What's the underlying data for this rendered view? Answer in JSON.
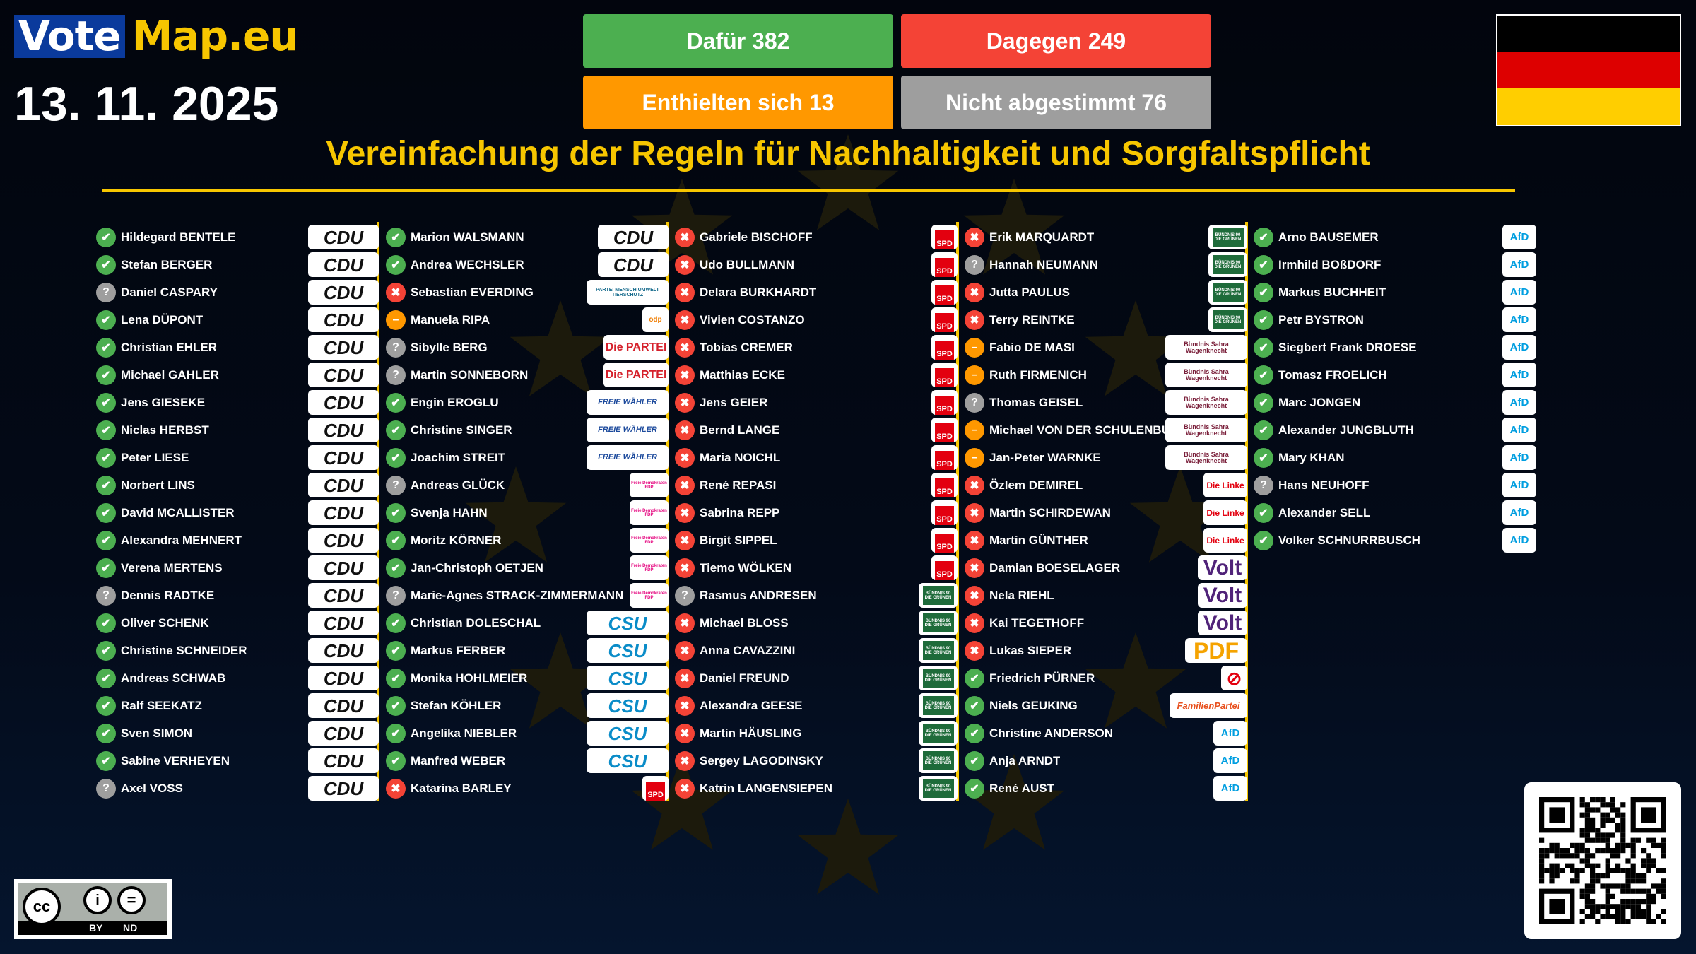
{
  "brand": {
    "vote": "Vote",
    "map": "Map.eu"
  },
  "date": "13. 11. 2025",
  "tally": {
    "for": "Dafür 382",
    "against": "Dagegen 249",
    "abstain": "Enthielten sich 13",
    "absent": "Nicht abgestimmt 76"
  },
  "title": "Vereinfachung der Regeln für Nachhaltigkeit und Sorgfaltspflicht",
  "country_flag": {
    "name": "germany-flag",
    "colors": [
      "#000000",
      "#DD0000",
      "#FFCE00"
    ]
  },
  "colors": {
    "for": "#4CAF50",
    "against": "#F44336",
    "abstain": "#FF9800",
    "absent": "#9E9E9E",
    "accent": "#F7C600"
  },
  "vote_icons": {
    "for": "✔",
    "against": "✖",
    "abstain": "–",
    "absent": "?"
  },
  "parties": {
    "CDU": {
      "label": "CDU",
      "color": "#111111"
    },
    "CSU": {
      "label": "CSU",
      "color": "#0a8cc8"
    },
    "SPD": {
      "label": "SPD",
      "color": "#E3000F"
    },
    "GRUENE": {
      "label": "BÜNDNIS 90 DIE GRÜNEN",
      "color": "#1E6B3A"
    },
    "AFD": {
      "label": "AfD",
      "color": "#009EE0"
    },
    "FDP": {
      "label": "Freie Demokraten FDP",
      "color": "#E5007D"
    },
    "FW": {
      "label": "FREIE WÄHLER",
      "color": "#1C4A9C"
    },
    "PARTEI": {
      "label": "Die PARTEI",
      "color": "#D5202B"
    },
    "TIERSCHUTZ": {
      "label": "PARTEI MENSCH UMWELT TIERSCHUTZ",
      "color": "#156A8C"
    },
    "OEDP": {
      "label": "ödp",
      "color": "#F07D00"
    },
    "BSW": {
      "label": "Bündnis Sahra Wagenknecht",
      "color": "#7A1F3A"
    },
    "LINKE": {
      "label": "Die Linke",
      "color": "#E3000F"
    },
    "VOLT": {
      "label": "Volt",
      "color": "#502379"
    },
    "PDF": {
      "label": "PDF",
      "color": "#F5A300"
    },
    "NI": {
      "label": "⊘",
      "color": "#E3000F"
    },
    "FAMILIE": {
      "label": "FamilienPartei",
      "color": "#E8501D"
    }
  },
  "columns": [
    [
      {
        "name": "Hildegard BENTELE",
        "vote": "for",
        "party": "CDU"
      },
      {
        "name": "Stefan BERGER",
        "vote": "for",
        "party": "CDU"
      },
      {
        "name": "Daniel CASPARY",
        "vote": "absent",
        "party": "CDU"
      },
      {
        "name": "Lena DÜPONT",
        "vote": "for",
        "party": "CDU"
      },
      {
        "name": "Christian EHLER",
        "vote": "for",
        "party": "CDU"
      },
      {
        "name": "Michael GAHLER",
        "vote": "for",
        "party": "CDU"
      },
      {
        "name": "Jens GIESEKE",
        "vote": "for",
        "party": "CDU"
      },
      {
        "name": "Niclas HERBST",
        "vote": "for",
        "party": "CDU"
      },
      {
        "name": "Peter LIESE",
        "vote": "for",
        "party": "CDU"
      },
      {
        "name": "Norbert LINS",
        "vote": "for",
        "party": "CDU"
      },
      {
        "name": "David MCALLISTER",
        "vote": "for",
        "party": "CDU"
      },
      {
        "name": "Alexandra MEHNERT",
        "vote": "for",
        "party": "CDU"
      },
      {
        "name": "Verena MERTENS",
        "vote": "for",
        "party": "CDU"
      },
      {
        "name": "Dennis RADTKE",
        "vote": "absent",
        "party": "CDU"
      },
      {
        "name": "Oliver SCHENK",
        "vote": "for",
        "party": "CDU"
      },
      {
        "name": "Christine SCHNEIDER",
        "vote": "for",
        "party": "CDU"
      },
      {
        "name": "Andreas SCHWAB",
        "vote": "for",
        "party": "CDU"
      },
      {
        "name": "Ralf SEEKATZ",
        "vote": "for",
        "party": "CDU"
      },
      {
        "name": "Sven SIMON",
        "vote": "for",
        "party": "CDU"
      },
      {
        "name": "Sabine VERHEYEN",
        "vote": "for",
        "party": "CDU"
      },
      {
        "name": "Axel VOSS",
        "vote": "absent",
        "party": "CDU"
      }
    ],
    [
      {
        "name": "Marion WALSMANN",
        "vote": "for",
        "party": "CDU"
      },
      {
        "name": "Andrea WECHSLER",
        "vote": "for",
        "party": "CDU"
      },
      {
        "name": "Sebastian EVERDING",
        "vote": "against",
        "party": "TIERSCHUTZ"
      },
      {
        "name": "Manuela RIPA",
        "vote": "abstain",
        "party": "OEDP"
      },
      {
        "name": "Sibylle BERG",
        "vote": "absent",
        "party": "PARTEI"
      },
      {
        "name": "Martin SONNEBORN",
        "vote": "absent",
        "party": "PARTEI"
      },
      {
        "name": "Engin EROGLU",
        "vote": "for",
        "party": "FW"
      },
      {
        "name": "Christine SINGER",
        "vote": "for",
        "party": "FW"
      },
      {
        "name": "Joachim STREIT",
        "vote": "for",
        "party": "FW"
      },
      {
        "name": "Andreas GLÜCK",
        "vote": "absent",
        "party": "FDP"
      },
      {
        "name": "Svenja HAHN",
        "vote": "for",
        "party": "FDP"
      },
      {
        "name": "Moritz KÖRNER",
        "vote": "for",
        "party": "FDP"
      },
      {
        "name": "Jan-Christoph OETJEN",
        "vote": "for",
        "party": "FDP"
      },
      {
        "name": "Marie-Agnes STRACK-ZIMMERMANN",
        "vote": "absent",
        "party": "FDP"
      },
      {
        "name": "Christian DOLESCHAL",
        "vote": "for",
        "party": "CSU"
      },
      {
        "name": "Markus FERBER",
        "vote": "for",
        "party": "CSU"
      },
      {
        "name": "Monika HOHLMEIER",
        "vote": "for",
        "party": "CSU"
      },
      {
        "name": "Stefan KÖHLER",
        "vote": "for",
        "party": "CSU"
      },
      {
        "name": "Angelika NIEBLER",
        "vote": "for",
        "party": "CSU"
      },
      {
        "name": "Manfred WEBER",
        "vote": "for",
        "party": "CSU"
      },
      {
        "name": "Katarina BARLEY",
        "vote": "against",
        "party": "SPD"
      }
    ],
    [
      {
        "name": "Gabriele BISCHOFF",
        "vote": "against",
        "party": "SPD"
      },
      {
        "name": "Udo BULLMANN",
        "vote": "against",
        "party": "SPD"
      },
      {
        "name": "Delara BURKHARDT",
        "vote": "against",
        "party": "SPD"
      },
      {
        "name": "Vivien COSTANZO",
        "vote": "against",
        "party": "SPD"
      },
      {
        "name": "Tobias CREMER",
        "vote": "against",
        "party": "SPD"
      },
      {
        "name": "Matthias ECKE",
        "vote": "against",
        "party": "SPD"
      },
      {
        "name": "Jens GEIER",
        "vote": "against",
        "party": "SPD"
      },
      {
        "name": "Bernd LANGE",
        "vote": "against",
        "party": "SPD"
      },
      {
        "name": "Maria NOICHL",
        "vote": "against",
        "party": "SPD"
      },
      {
        "name": "René REPASI",
        "vote": "against",
        "party": "SPD"
      },
      {
        "name": "Sabrina REPP",
        "vote": "against",
        "party": "SPD"
      },
      {
        "name": "Birgit SIPPEL",
        "vote": "against",
        "party": "SPD"
      },
      {
        "name": "Tiemo WÖLKEN",
        "vote": "against",
        "party": "SPD"
      },
      {
        "name": "Rasmus ANDRESEN",
        "vote": "absent",
        "party": "GRUENE"
      },
      {
        "name": "Michael BLOSS",
        "vote": "against",
        "party": "GRUENE"
      },
      {
        "name": "Anna CAVAZZINI",
        "vote": "against",
        "party": "GRUENE"
      },
      {
        "name": "Daniel FREUND",
        "vote": "against",
        "party": "GRUENE"
      },
      {
        "name": "Alexandra GEESE",
        "vote": "against",
        "party": "GRUENE"
      },
      {
        "name": "Martin HÄUSLING",
        "vote": "against",
        "party": "GRUENE"
      },
      {
        "name": "Sergey LAGODINSKY",
        "vote": "against",
        "party": "GRUENE"
      },
      {
        "name": "Katrin LANGENSIEPEN",
        "vote": "against",
        "party": "GRUENE"
      }
    ],
    [
      {
        "name": "Erik MARQUARDT",
        "vote": "against",
        "party": "GRUENE"
      },
      {
        "name": "Hannah NEUMANN",
        "vote": "absent",
        "party": "GRUENE"
      },
      {
        "name": "Jutta PAULUS",
        "vote": "against",
        "party": "GRUENE"
      },
      {
        "name": "Terry REINTKE",
        "vote": "against",
        "party": "GRUENE"
      },
      {
        "name": "Fabio DE MASI",
        "vote": "abstain",
        "party": "BSW"
      },
      {
        "name": "Ruth FIRMENICH",
        "vote": "abstain",
        "party": "BSW"
      },
      {
        "name": "Thomas GEISEL",
        "vote": "absent",
        "party": "BSW"
      },
      {
        "name": "Michael VON DER SCHULENBU",
        "vote": "abstain",
        "party": "BSW"
      },
      {
        "name": "Jan-Peter WARNKE",
        "vote": "abstain",
        "party": "BSW"
      },
      {
        "name": "Özlem DEMIREL",
        "vote": "against",
        "party": "LINKE"
      },
      {
        "name": "Martin SCHIRDEWAN",
        "vote": "against",
        "party": "LINKE"
      },
      {
        "name": "Martin GÜNTHER",
        "vote": "against",
        "party": "LINKE"
      },
      {
        "name": "Damian BOESELAGER",
        "vote": "against",
        "party": "VOLT"
      },
      {
        "name": "Nela RIEHL",
        "vote": "against",
        "party": "VOLT"
      },
      {
        "name": "Kai TEGETHOFF",
        "vote": "against",
        "party": "VOLT"
      },
      {
        "name": "Lukas SIEPER",
        "vote": "against",
        "party": "PDF"
      },
      {
        "name": "Friedrich PÜRNER",
        "vote": "for",
        "party": "NI"
      },
      {
        "name": "Niels GEUKING",
        "vote": "for",
        "party": "FAMILIE"
      },
      {
        "name": "Christine ANDERSON",
        "vote": "for",
        "party": "AFD"
      },
      {
        "name": "Anja ARNDT",
        "vote": "for",
        "party": "AFD"
      },
      {
        "name": "René AUST",
        "vote": "for",
        "party": "AFD"
      }
    ],
    [
      {
        "name": "Arno BAUSEMER",
        "vote": "for",
        "party": "AFD"
      },
      {
        "name": "Irmhild BOßDORF",
        "vote": "for",
        "party": "AFD"
      },
      {
        "name": "Markus BUCHHEIT",
        "vote": "for",
        "party": "AFD"
      },
      {
        "name": "Petr BYSTRON",
        "vote": "for",
        "party": "AFD"
      },
      {
        "name": "Siegbert Frank DROESE",
        "vote": "for",
        "party": "AFD"
      },
      {
        "name": "Tomasz FROELICH",
        "vote": "for",
        "party": "AFD"
      },
      {
        "name": "Marc JONGEN",
        "vote": "for",
        "party": "AFD"
      },
      {
        "name": "Alexander JUNGBLUTH",
        "vote": "for",
        "party": "AFD"
      },
      {
        "name": "Mary KHAN",
        "vote": "for",
        "party": "AFD"
      },
      {
        "name": "Hans NEUHOFF",
        "vote": "absent",
        "party": "AFD"
      },
      {
        "name": "Alexander SELL",
        "vote": "for",
        "party": "AFD"
      },
      {
        "name": "Volker SCHNURRBUSCH",
        "vote": "for",
        "party": "AFD"
      }
    ]
  ],
  "license": {
    "by": "BY",
    "nd": "ND",
    "cc": "cc"
  }
}
